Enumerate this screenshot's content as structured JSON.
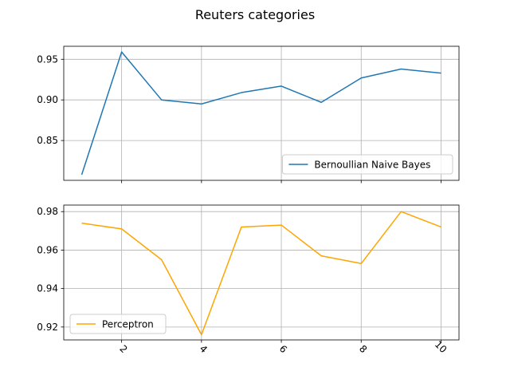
{
  "figure": {
    "title": "Reuters categories"
  },
  "chart_data": [
    {
      "type": "line",
      "title": "",
      "xlabel": "",
      "ylabel": "",
      "xlim": [
        0.55,
        10.45
      ],
      "ylim": [
        0.801,
        0.966
      ],
      "x_ticks": [
        2,
        4,
        6,
        8,
        10
      ],
      "y_ticks": [
        0.85,
        0.9,
        0.95
      ],
      "y_tick_labels": [
        "0.85",
        "0.90",
        "0.95"
      ],
      "x_tick_labels_visible": false,
      "grid": true,
      "legend": "lower-right",
      "series": [
        {
          "name": "Bernoullian Naive Bayes",
          "color": "#1f77b4",
          "x": [
            1,
            2,
            3,
            4,
            5,
            6,
            7,
            8,
            9,
            10
          ],
          "values": [
            0.808,
            0.959,
            0.9,
            0.895,
            0.909,
            0.917,
            0.897,
            0.927,
            0.938,
            0.933
          ]
        }
      ]
    },
    {
      "type": "line",
      "title": "",
      "xlabel": "",
      "ylabel": "",
      "xlim": [
        0.55,
        10.45
      ],
      "ylim": [
        0.9133,
        0.9834
      ],
      "x_ticks": [
        2,
        4,
        6,
        8,
        10
      ],
      "x_tick_labels": [
        "2",
        "4",
        "6",
        "8",
        "10"
      ],
      "x_tick_rotation": 45,
      "y_ticks": [
        0.92,
        0.94,
        0.96,
        0.98
      ],
      "y_tick_labels": [
        "0.92",
        "0.94",
        "0.96",
        "0.98"
      ],
      "grid": true,
      "legend": "lower-left",
      "series": [
        {
          "name": "Perceptron",
          "color": "#ffa500",
          "x": [
            1,
            2,
            3,
            4,
            5,
            6,
            7,
            8,
            9,
            10
          ],
          "values": [
            0.974,
            0.971,
            0.955,
            0.916,
            0.972,
            0.973,
            0.957,
            0.953,
            0.98,
            0.972
          ]
        }
      ]
    }
  ]
}
